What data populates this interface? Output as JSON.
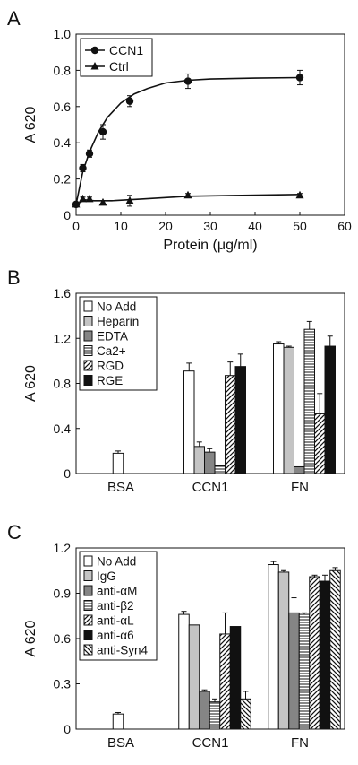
{
  "chart_data": [
    {
      "panel_label": "A",
      "type": "line",
      "xlabel": "Protein (μg/ml)",
      "ylabel": "A 620",
      "xlim": [
        0,
        60
      ],
      "ylim": [
        0,
        1.0
      ],
      "xticks": [
        "0",
        "10",
        "20",
        "30",
        "40",
        "50",
        "60"
      ],
      "yticks": [
        "0",
        "0.2",
        "0.4",
        "0.6",
        "0.8",
        "1.0"
      ],
      "legend_position": "top-left",
      "series": [
        {
          "name": "CCN1",
          "marker": "circle",
          "x": [
            0,
            1.5,
            3,
            6,
            12,
            25,
            50
          ],
          "y": [
            0.06,
            0.26,
            0.34,
            0.46,
            0.63,
            0.74,
            0.76
          ],
          "err": [
            0.01,
            0.02,
            0.02,
            0.04,
            0.03,
            0.04,
            0.04
          ],
          "fit": [
            [
              0,
              0.06
            ],
            [
              1.5,
              0.24
            ],
            [
              3,
              0.35
            ],
            [
              5,
              0.46
            ],
            [
              7,
              0.54
            ],
            [
              10,
              0.62
            ],
            [
              13,
              0.67
            ],
            [
              16,
              0.7
            ],
            [
              20,
              0.73
            ],
            [
              25,
              0.745
            ],
            [
              30,
              0.752
            ],
            [
              40,
              0.757
            ],
            [
              50,
              0.76
            ]
          ]
        },
        {
          "name": "Ctrl",
          "marker": "triangle",
          "x": [
            0,
            1.5,
            3,
            6,
            12,
            25,
            50
          ],
          "y": [
            0.06,
            0.09,
            0.09,
            0.07,
            0.08,
            0.11,
            0.11
          ],
          "err": [
            0.01,
            0.01,
            0.01,
            0.01,
            0.03,
            0.01,
            0.01
          ],
          "fit": [
            [
              0,
              0.06
            ],
            [
              2,
              0.085
            ],
            [
              4,
              0.08
            ],
            [
              8,
              0.08
            ],
            [
              15,
              0.09
            ],
            [
              25,
              0.105
            ],
            [
              50,
              0.115
            ]
          ]
        }
      ]
    },
    {
      "panel_label": "B",
      "type": "bar",
      "ylabel": "A 620",
      "ylim": [
        0,
        1.6
      ],
      "yticks": [
        "0",
        "0.4",
        "0.8",
        "1.2",
        "1.6"
      ],
      "categories": [
        "BSA",
        "CCN1",
        "FN"
      ],
      "legend_position": "top-left",
      "series": [
        {
          "name": "No Add",
          "pattern": "white",
          "values": [
            0.18,
            0.91,
            1.15
          ],
          "err": [
            0.02,
            0.07,
            0.02
          ]
        },
        {
          "name": "Heparin",
          "pattern": "lightgray",
          "values": [
            null,
            0.24,
            1.12
          ],
          "err": [
            null,
            0.04,
            0.01
          ]
        },
        {
          "name": "EDTA",
          "pattern": "gray",
          "values": [
            null,
            0.19,
            0.06
          ],
          "err": [
            null,
            0.03,
            0.0
          ]
        },
        {
          "name": "Ca2+",
          "pattern": "hlines",
          "values": [
            null,
            0.07,
            1.28
          ],
          "err": [
            null,
            0.0,
            0.07
          ]
        },
        {
          "name": "RGD",
          "pattern": "fdiag",
          "values": [
            null,
            0.87,
            0.53
          ],
          "err": [
            null,
            0.12,
            0.18
          ]
        },
        {
          "name": "RGE",
          "pattern": "black",
          "values": [
            null,
            0.95,
            1.13
          ],
          "err": [
            null,
            0.11,
            0.09
          ]
        }
      ]
    },
    {
      "panel_label": "C",
      "type": "bar",
      "ylabel": "A 620",
      "ylim": [
        0,
        1.2
      ],
      "yticks": [
        "0",
        "0.3",
        "0.6",
        "0.9",
        "1.2"
      ],
      "categories": [
        "BSA",
        "CCN1",
        "FN"
      ],
      "legend_position": "top-left",
      "series": [
        {
          "name": "No Add",
          "pattern": "white",
          "values": [
            0.1,
            0.76,
            1.09
          ],
          "err": [
            0.01,
            0.02,
            0.02
          ]
        },
        {
          "name": "IgG",
          "pattern": "lightgray",
          "values": [
            null,
            0.69,
            1.04
          ],
          "err": [
            null,
            0.0,
            0.01
          ]
        },
        {
          "name": "anti-αM",
          "pattern": "gray",
          "values": [
            null,
            0.25,
            0.77
          ],
          "err": [
            null,
            0.01,
            0.1
          ]
        },
        {
          "name": "anti-β2",
          "pattern": "hlines",
          "values": [
            null,
            0.18,
            0.76
          ],
          "err": [
            null,
            0.02,
            0.01
          ]
        },
        {
          "name": "anti-αL",
          "pattern": "fdiag",
          "values": [
            null,
            0.63,
            1.01
          ],
          "err": [
            null,
            0.14,
            0.01
          ]
        },
        {
          "name": "anti-α6",
          "pattern": "black",
          "values": [
            null,
            0.68,
            0.98
          ],
          "err": [
            null,
            0.0,
            0.04
          ]
        },
        {
          "name": "anti-Syn4",
          "pattern": "bdiag",
          "values": [
            null,
            0.2,
            1.05
          ],
          "err": [
            null,
            0.05,
            0.02
          ]
        }
      ]
    }
  ]
}
